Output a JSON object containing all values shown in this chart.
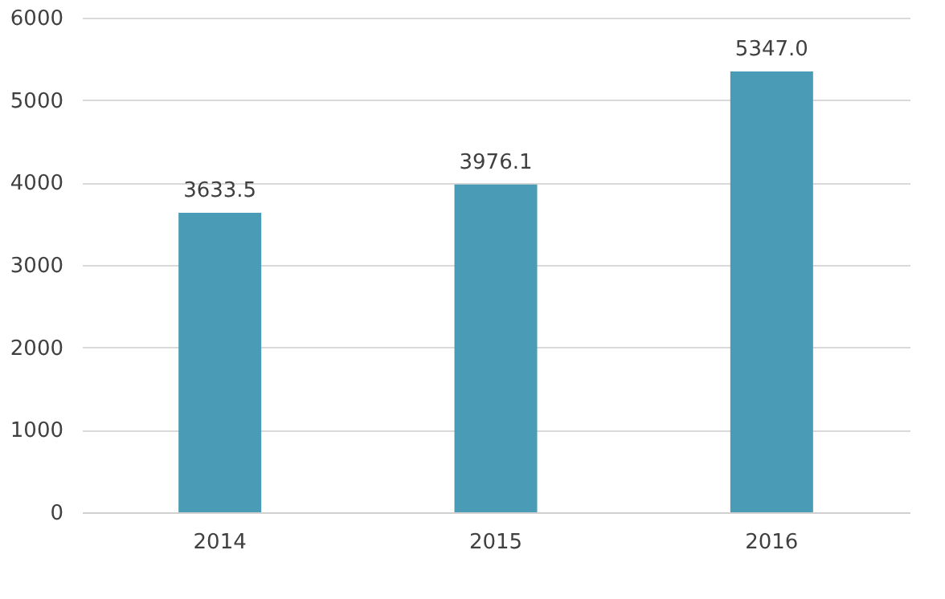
{
  "chart_data": {
    "type": "bar",
    "categories": [
      "2014",
      "2015",
      "2016"
    ],
    "values": [
      3633.5,
      3976.1,
      5347.0
    ],
    "value_labels": [
      "3633.5",
      "3976.1",
      "5347.0"
    ],
    "color": "#4a9bb5",
    "ylim": [
      0,
      6000
    ],
    "yticks": [
      0,
      1000,
      2000,
      3000,
      4000,
      5000,
      6000
    ],
    "grid": "y"
  }
}
